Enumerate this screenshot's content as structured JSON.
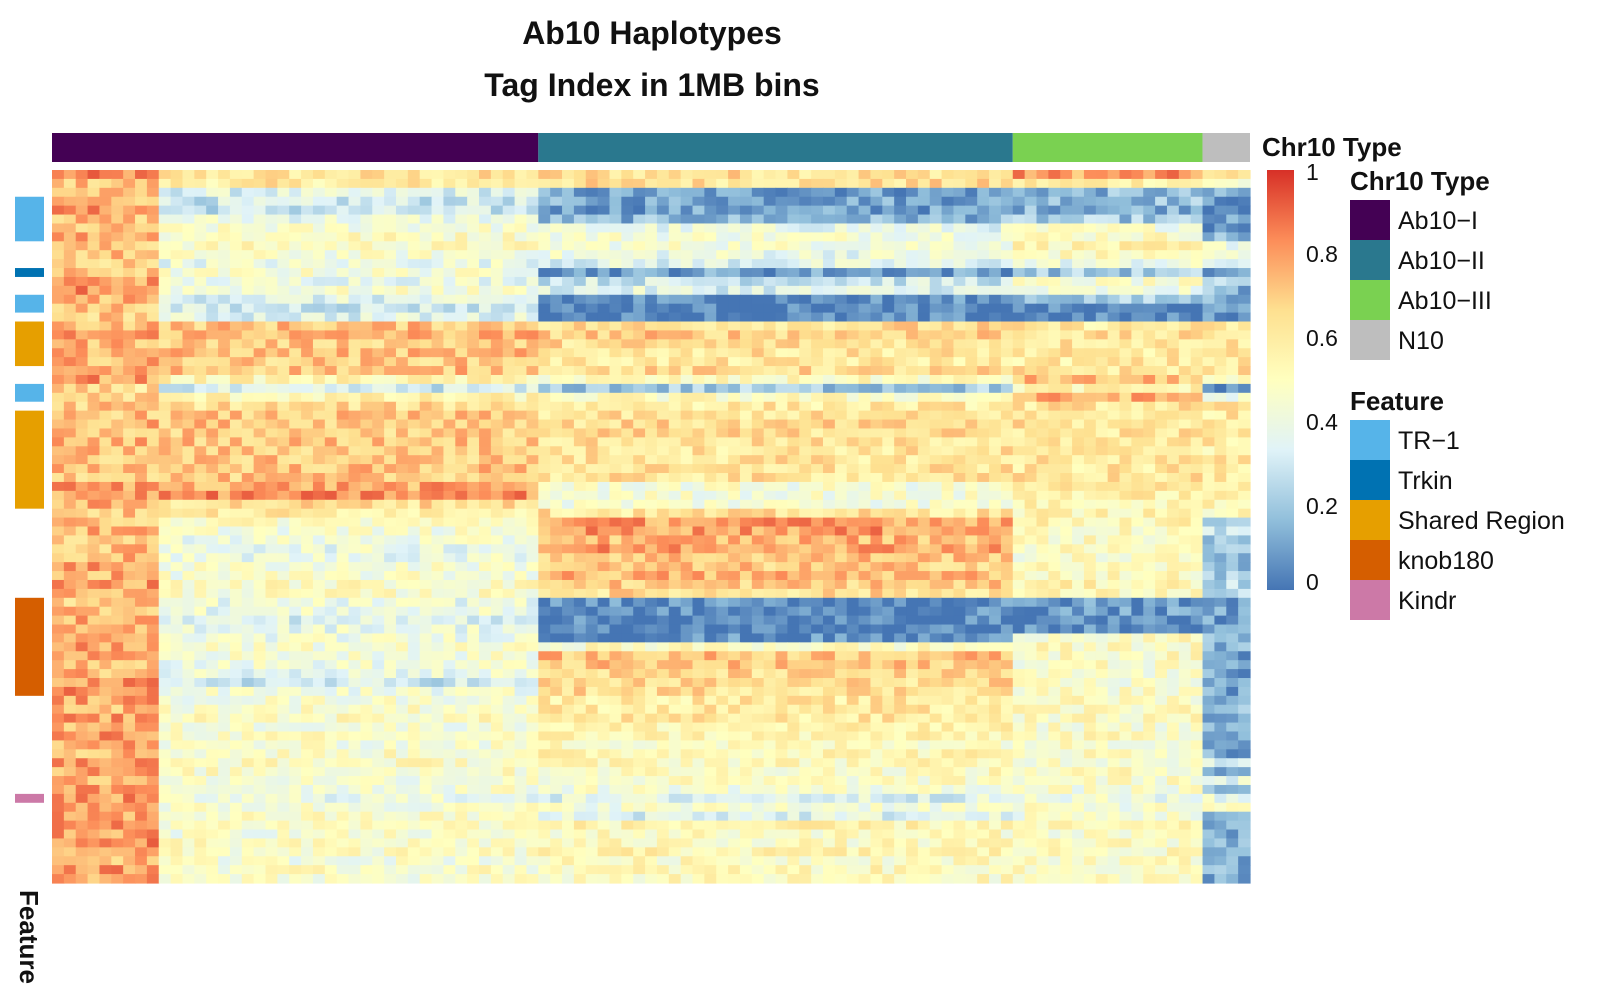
{
  "chart_data": {
    "type": "heatmap",
    "title_line1": "Ab10 Haplotypes",
    "title_line2": "Tag Index in 1MB bins",
    "column_annotation": {
      "name": "Chr10 Type",
      "legend_title": "Chr10 Type",
      "groups": [
        {
          "label": "Ab10−I",
          "columns": 41,
          "color": "#440154"
        },
        {
          "label": "Ab10−II",
          "columns": 40,
          "color": "#2a788e"
        },
        {
          "label": "Ab10−III",
          "columns": 16,
          "color": "#7ad151"
        },
        {
          "label": "N10",
          "columns": 4,
          "color": "#bebebe"
        }
      ]
    },
    "row_annotation": {
      "name": "Feature",
      "legend_title": "Feature",
      "categories": [
        {
          "label": "TR−1",
          "color": "#56b4e9"
        },
        {
          "label": "Trkin",
          "color": "#0072b2"
        },
        {
          "label": "Shared Region",
          "color": "#e69f00"
        },
        {
          "label": "knob180",
          "color": "#d55e00"
        },
        {
          "label": "Kindr",
          "color": "#cc79a7"
        }
      ],
      "segments": [
        {
          "feature": "TR−1",
          "start_row": 3,
          "end_row": 8
        },
        {
          "feature": "Trkin",
          "start_row": 11,
          "end_row": 12
        },
        {
          "feature": "TR−1",
          "start_row": 14,
          "end_row": 16
        },
        {
          "feature": "Shared Region",
          "start_row": 17,
          "end_row": 22
        },
        {
          "feature": "TR−1",
          "start_row": 24,
          "end_row": 26
        },
        {
          "feature": "Shared Region",
          "start_row": 27,
          "end_row": 38
        },
        {
          "feature": "knob180",
          "start_row": 48,
          "end_row": 59
        },
        {
          "feature": "Kindr",
          "start_row": 70,
          "end_row": 71
        }
      ]
    },
    "n_rows": 80,
    "n_cols": 101,
    "color_scale": {
      "min": 0,
      "max": 1,
      "ticks": [
        "1",
        "0.8",
        "0.6",
        "0.4",
        "0.2",
        "0"
      ],
      "tick_values": [
        1,
        0.8,
        0.6,
        0.4,
        0.2,
        0
      ],
      "stops": [
        "#4575b4",
        "#91bfdb",
        "#e0f3f8",
        "#ffffbf",
        "#fee090",
        "#fc8d59",
        "#d73027"
      ]
    },
    "row_profiles": [
      [
        0.82,
        0.62,
        0.65,
        0.8,
        0.6
      ],
      [
        0.72,
        0.6,
        0.64,
        0.6,
        0.45
      ],
      [
        0.7,
        0.35,
        0.1,
        0.15,
        0.1
      ],
      [
        0.75,
        0.3,
        0.12,
        0.18,
        0.08
      ],
      [
        0.8,
        0.28,
        0.1,
        0.15,
        0.1
      ],
      [
        0.72,
        0.4,
        0.15,
        0.2,
        0.08
      ],
      [
        0.7,
        0.45,
        0.38,
        0.45,
        0.1
      ],
      [
        0.78,
        0.5,
        0.45,
        0.5,
        0.15
      ],
      [
        0.7,
        0.5,
        0.45,
        0.55,
        0.42
      ],
      [
        0.72,
        0.45,
        0.4,
        0.5,
        0.4
      ],
      [
        0.68,
        0.4,
        0.35,
        0.4,
        0.35
      ],
      [
        0.7,
        0.45,
        0.1,
        0.2,
        0.1
      ],
      [
        0.8,
        0.4,
        0.3,
        0.45,
        0.2
      ],
      [
        0.82,
        0.45,
        0.35,
        0.4,
        0.15
      ],
      [
        0.75,
        0.35,
        0.05,
        0.2,
        0.15
      ],
      [
        0.72,
        0.3,
        0.02,
        0.02,
        0.05
      ],
      [
        0.7,
        0.35,
        0.03,
        0.03,
        0.05
      ],
      [
        0.75,
        0.72,
        0.65,
        0.6,
        0.6
      ],
      [
        0.8,
        0.75,
        0.7,
        0.62,
        0.62
      ],
      [
        0.75,
        0.7,
        0.65,
        0.62,
        0.62
      ],
      [
        0.78,
        0.72,
        0.62,
        0.6,
        0.6
      ],
      [
        0.75,
        0.7,
        0.6,
        0.6,
        0.6
      ],
      [
        0.76,
        0.72,
        0.65,
        0.62,
        0.62
      ],
      [
        0.8,
        0.55,
        0.5,
        0.72,
        0.45
      ],
      [
        0.65,
        0.3,
        0.2,
        0.55,
        0.05
      ],
      [
        0.68,
        0.55,
        0.5,
        0.75,
        0.4
      ],
      [
        0.7,
        0.65,
        0.6,
        0.62,
        0.6
      ],
      [
        0.72,
        0.7,
        0.62,
        0.6,
        0.6
      ],
      [
        0.75,
        0.72,
        0.65,
        0.62,
        0.62
      ],
      [
        0.72,
        0.7,
        0.65,
        0.62,
        0.62
      ],
      [
        0.75,
        0.72,
        0.62,
        0.6,
        0.6
      ],
      [
        0.72,
        0.7,
        0.62,
        0.6,
        0.58
      ],
      [
        0.7,
        0.7,
        0.62,
        0.62,
        0.6
      ],
      [
        0.75,
        0.72,
        0.62,
        0.6,
        0.6
      ],
      [
        0.72,
        0.7,
        0.62,
        0.62,
        0.6
      ],
      [
        0.8,
        0.78,
        0.45,
        0.6,
        0.6
      ],
      [
        0.8,
        0.82,
        0.45,
        0.58,
        0.55
      ],
      [
        0.75,
        0.65,
        0.45,
        0.55,
        0.55
      ],
      [
        0.7,
        0.6,
        0.62,
        0.55,
        0.5
      ],
      [
        0.72,
        0.5,
        0.8,
        0.55,
        0.25
      ],
      [
        0.75,
        0.45,
        0.8,
        0.5,
        0.25
      ],
      [
        0.7,
        0.42,
        0.75,
        0.5,
        0.15
      ],
      [
        0.72,
        0.4,
        0.8,
        0.5,
        0.18
      ],
      [
        0.75,
        0.4,
        0.72,
        0.48,
        0.2
      ],
      [
        0.78,
        0.45,
        0.7,
        0.5,
        0.18
      ],
      [
        0.75,
        0.45,
        0.75,
        0.52,
        0.2
      ],
      [
        0.8,
        0.5,
        0.7,
        0.55,
        0.25
      ],
      [
        0.75,
        0.48,
        0.65,
        0.52,
        0.22
      ],
      [
        0.7,
        0.4,
        0.05,
        0.08,
        0.1
      ],
      [
        0.75,
        0.4,
        0.04,
        0.08,
        0.1
      ],
      [
        0.78,
        0.35,
        0.03,
        0.06,
        0.08
      ],
      [
        0.72,
        0.4,
        0.02,
        0.05,
        0.08
      ],
      [
        0.75,
        0.42,
        0.05,
        0.5,
        0.12
      ],
      [
        0.78,
        0.45,
        0.5,
        0.5,
        0.12
      ],
      [
        0.8,
        0.45,
        0.72,
        0.5,
        0.1
      ],
      [
        0.75,
        0.42,
        0.7,
        0.48,
        0.12
      ],
      [
        0.75,
        0.4,
        0.65,
        0.45,
        0.1
      ],
      [
        0.8,
        0.3,
        0.65,
        0.45,
        0.12
      ],
      [
        0.82,
        0.42,
        0.65,
        0.48,
        0.12
      ],
      [
        0.78,
        0.45,
        0.6,
        0.5,
        0.12
      ],
      [
        0.75,
        0.48,
        0.6,
        0.5,
        0.15
      ],
      [
        0.8,
        0.5,
        0.6,
        0.5,
        0.15
      ],
      [
        0.75,
        0.45,
        0.55,
        0.48,
        0.15
      ],
      [
        0.8,
        0.48,
        0.55,
        0.5,
        0.15
      ],
      [
        0.78,
        0.45,
        0.5,
        0.48,
        0.15
      ],
      [
        0.75,
        0.48,
        0.55,
        0.5,
        0.12
      ],
      [
        0.8,
        0.5,
        0.52,
        0.48,
        0.35
      ],
      [
        0.78,
        0.48,
        0.5,
        0.5,
        0.15
      ],
      [
        0.75,
        0.45,
        0.48,
        0.48,
        0.38
      ],
      [
        0.78,
        0.45,
        0.45,
        0.45,
        0.15
      ],
      [
        0.8,
        0.4,
        0.35,
        0.4,
        0.38
      ],
      [
        0.82,
        0.45,
        0.45,
        0.45,
        0.45
      ],
      [
        0.78,
        0.48,
        0.35,
        0.45,
        0.15
      ],
      [
        0.8,
        0.5,
        0.55,
        0.5,
        0.15
      ],
      [
        0.78,
        0.45,
        0.5,
        0.48,
        0.15
      ],
      [
        0.82,
        0.48,
        0.5,
        0.5,
        0.15
      ],
      [
        0.78,
        0.48,
        0.55,
        0.5,
        0.15
      ],
      [
        0.75,
        0.45,
        0.5,
        0.5,
        0.15
      ],
      [
        0.8,
        0.48,
        0.52,
        0.48,
        0.15
      ],
      [
        0.78,
        0.45,
        0.5,
        0.48,
        0.15
      ]
    ],
    "row_profile_groups": [
      "Ab10−I (first 9 cols)",
      "Ab10−I (rest)",
      "Ab10−II",
      "Ab10−III",
      "N10"
    ]
  }
}
